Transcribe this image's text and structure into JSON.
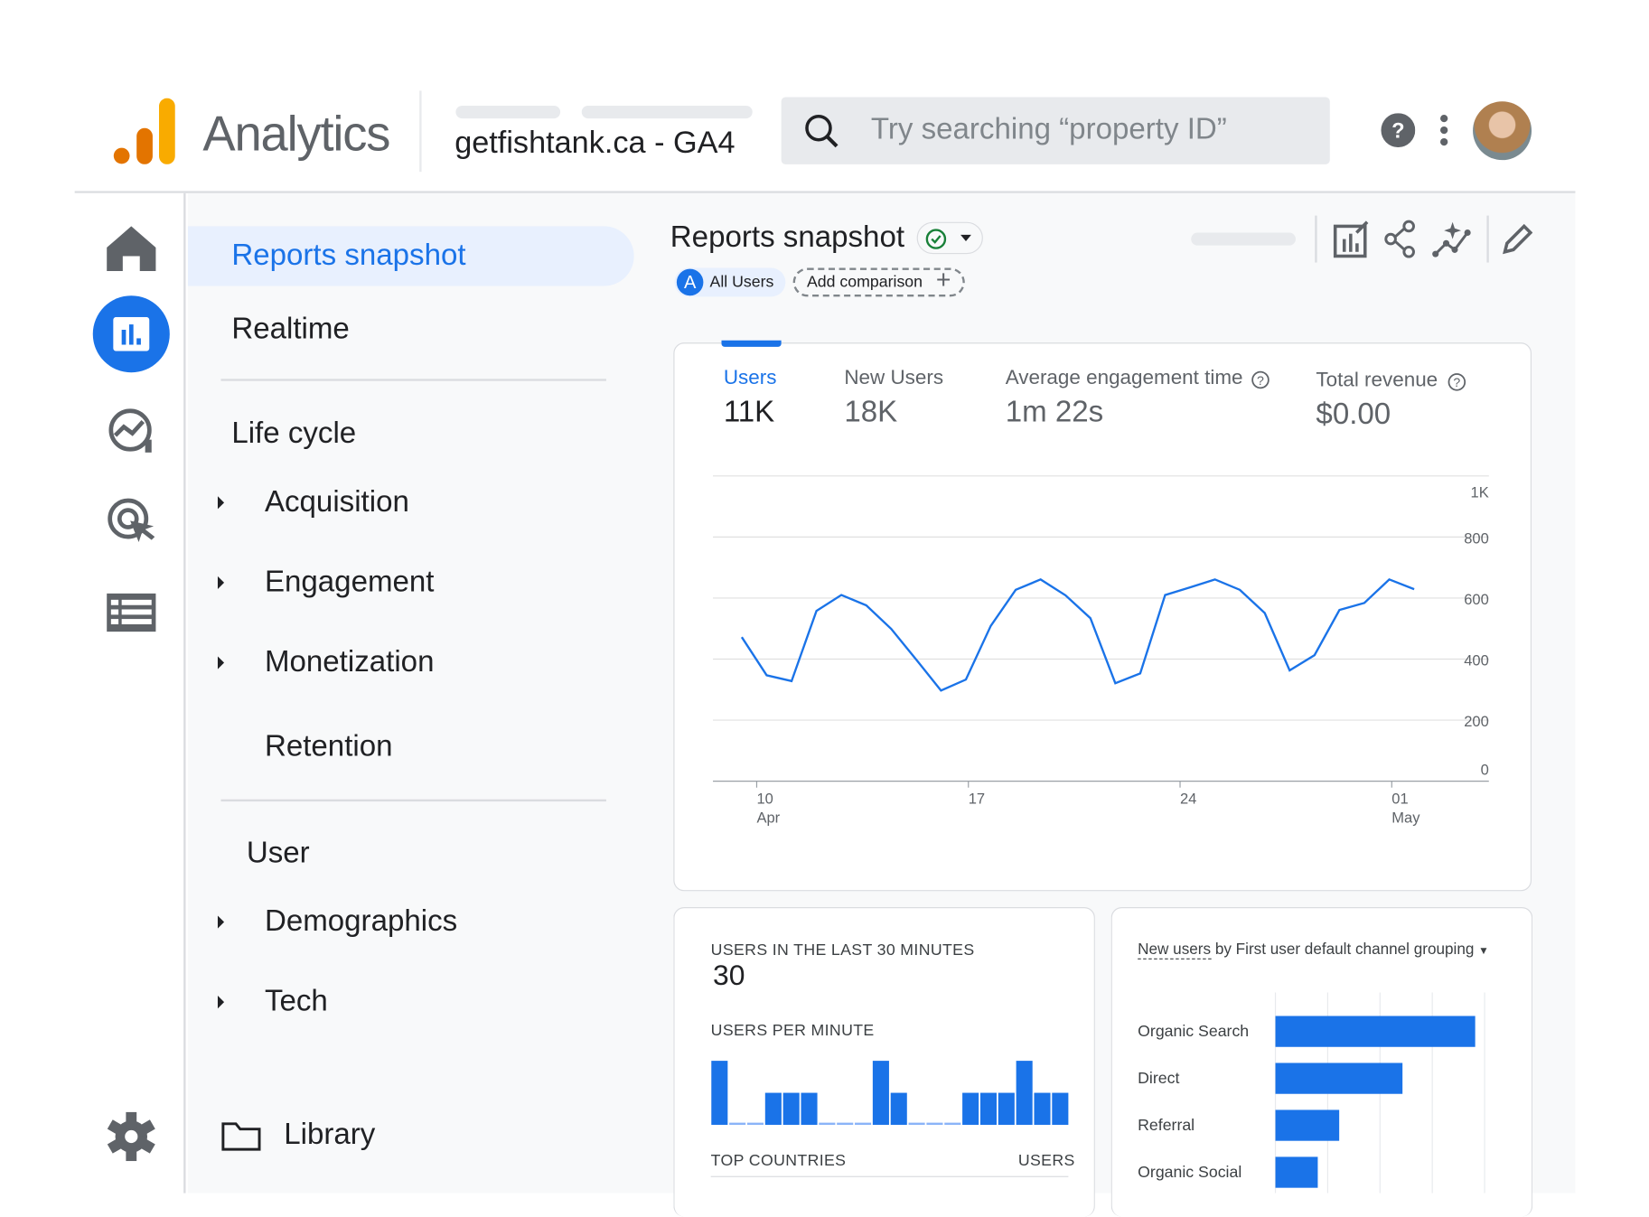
{
  "header": {
    "app_name": "Analytics",
    "property": "getfishtank.ca - GA4",
    "search_placeholder": "Try searching “property ID”"
  },
  "nav": {
    "reports_snapshot": "Reports snapshot",
    "realtime": "Realtime",
    "lifecycle": "Life cycle",
    "lifecycle_items": [
      "Acquisition",
      "Engagement",
      "Monetization",
      "Retention"
    ],
    "user": "User",
    "user_items": [
      "Demographics",
      "Tech"
    ],
    "library": "Library"
  },
  "page": {
    "title": "Reports snapshot",
    "segment_letter": "A",
    "segment": "All Users",
    "add_comparison": "Add comparison"
  },
  "metrics": [
    {
      "label": "Users",
      "value": "11K"
    },
    {
      "label": "New Users",
      "value": "18K"
    },
    {
      "label": "Average engagement time",
      "value": "1m 22s"
    },
    {
      "label": "Total revenue",
      "value": "$0.00"
    }
  ],
  "colors": {
    "accent": "#1a73e8",
    "logo_orange": "#e37400",
    "logo_yellow": "#f9ab00",
    "icon": "#5f6368"
  },
  "chart_data": [
    {
      "type": "line",
      "series": [
        {
          "name": "Users",
          "values": [
            472,
            347,
            328,
            558,
            610,
            576,
            499,
            399,
            297,
            333,
            509,
            627,
            661,
            609,
            534,
            321,
            353,
            610,
            635,
            661,
            627,
            551,
            363,
            413,
            561,
            584,
            661,
            629
          ]
        }
      ],
      "ylim": [
        0,
        1000
      ],
      "yticks": [
        {
          "v": 1000,
          "label": "1K"
        },
        {
          "v": 800,
          "label": "800"
        },
        {
          "v": 600,
          "label": "600"
        },
        {
          "v": 400,
          "label": "400"
        },
        {
          "v": 200,
          "label": "200"
        },
        {
          "v": 0,
          "label": "0"
        }
      ],
      "xticks": [
        {
          "at_index": 0.6,
          "day": "10",
          "month": "Apr"
        },
        {
          "at_index": 9.1,
          "day": "17",
          "month": ""
        },
        {
          "at_index": 17.6,
          "day": "24",
          "month": ""
        },
        {
          "at_index": 26.1,
          "day": "01",
          "month": "May"
        }
      ]
    },
    {
      "type": "bar",
      "title": "USERS PER MINUTE",
      "values": [
        2,
        0,
        0,
        1,
        1,
        1,
        0,
        0,
        0,
        2,
        1,
        0,
        0,
        0,
        1,
        1,
        1,
        2,
        1,
        1
      ]
    },
    {
      "type": "bar",
      "orientation": "horizontal",
      "title_link": "New users",
      "title_rest": "by First user default channel grouping",
      "categories": [
        "Organic Search",
        "Direct",
        "Referral",
        "Organic Social"
      ],
      "values": [
        3.82,
        2.43,
        1.22,
        0.81
      ],
      "xlim": [
        0,
        4
      ]
    }
  ],
  "realtime": {
    "title": "USERS IN THE LAST 30 MINUTES",
    "value": "30",
    "top_countries": "TOP COUNTRIES",
    "users_col": "USERS"
  }
}
